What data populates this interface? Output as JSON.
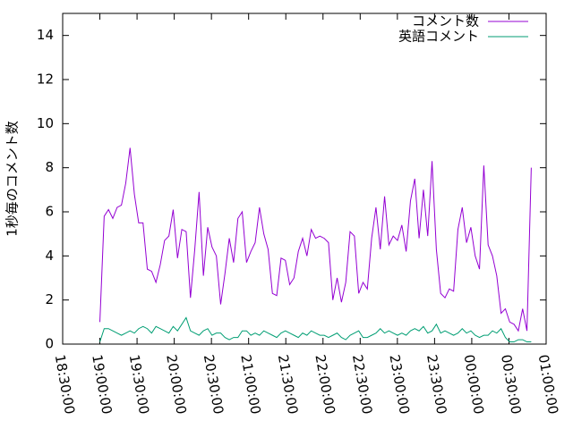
{
  "chart_data": {
    "type": "line",
    "y_label": "1秒毎のコメント数",
    "x": [
      19,
      19.058,
      19.116,
      19.174,
      19.232,
      19.29,
      19.348,
      19.406,
      19.464,
      19.522,
      19.58,
      19.638,
      19.696,
      19.754,
      19.812,
      19.87,
      19.928,
      19.986,
      20.044,
      20.102,
      20.16,
      20.218,
      20.276,
      20.334,
      20.392,
      20.45,
      20.508,
      20.566,
      20.624,
      20.682,
      20.74,
      20.798,
      20.856,
      20.914,
      20.972,
      21.03,
      21.088,
      21.146,
      21.204,
      21.262,
      21.32,
      21.378,
      21.436,
      21.494,
      21.552,
      21.61,
      21.668,
      21.726,
      21.784,
      21.842,
      21.9,
      21.958,
      22.016,
      22.074,
      22.132,
      22.19,
      22.248,
      22.306,
      22.364,
      22.422,
      22.48,
      22.538,
      22.596,
      22.654,
      22.712,
      22.77,
      22.828,
      22.886,
      22.944,
      23.002,
      23.06,
      23.118,
      23.176,
      23.234,
      23.292,
      23.35,
      23.408,
      23.466,
      23.524,
      23.582,
      23.64,
      23.698,
      23.756,
      23.814,
      23.872,
      23.93,
      23.988,
      24.046,
      24.104,
      24.162,
      24.22,
      24.278,
      24.336,
      24.394,
      24.452,
      24.51,
      24.568,
      24.626,
      24.684,
      24.742,
      24.8
    ],
    "series": [
      {
        "name": "コメント数",
        "color": "#9400d3",
        "values": [
          1.0,
          5.8,
          6.1,
          5.7,
          6.2,
          6.3,
          7.3,
          8.9,
          6.8,
          5.5,
          5.5,
          3.4,
          3.3,
          2.8,
          3.6,
          4.7,
          4.9,
          6.1,
          3.9,
          5.2,
          5.1,
          2.1,
          4.3,
          6.9,
          3.1,
          5.3,
          4.4,
          4.0,
          1.8,
          3.2,
          4.8,
          3.7,
          5.7,
          6.0,
          3.7,
          4.2,
          4.6,
          6.2,
          5.0,
          4.3,
          2.3,
          2.2,
          3.9,
          3.8,
          2.7,
          3.0,
          4.2,
          4.8,
          4.0,
          5.2,
          4.8,
          4.9,
          4.8,
          4.6,
          2.0,
          3.0,
          1.9,
          2.8,
          5.1,
          4.9,
          2.3,
          2.8,
          2.5,
          4.8,
          6.2,
          4.3,
          6.7,
          4.5,
          4.9,
          4.7,
          5.4,
          4.2,
          6.5,
          7.5,
          4.8,
          7.0,
          4.9,
          8.3,
          4.3,
          2.3,
          2.1,
          2.5,
          2.4,
          5.2,
          6.2,
          4.6,
          5.3,
          4.0,
          3.4,
          8.1,
          4.5,
          4.0,
          3.1,
          1.4,
          1.6,
          1.0,
          0.9,
          0.6,
          1.6,
          0.6,
          8.0
        ]
      },
      {
        "name": "英語コメント",
        "color": "#009e73",
        "values": [
          0.1,
          0.7,
          0.7,
          0.6,
          0.5,
          0.4,
          0.5,
          0.6,
          0.5,
          0.7,
          0.8,
          0.7,
          0.5,
          0.8,
          0.7,
          0.6,
          0.5,
          0.8,
          0.6,
          0.9,
          1.2,
          0.6,
          0.5,
          0.4,
          0.6,
          0.7,
          0.4,
          0.5,
          0.5,
          0.3,
          0.2,
          0.3,
          0.3,
          0.6,
          0.6,
          0.4,
          0.5,
          0.4,
          0.6,
          0.5,
          0.4,
          0.3,
          0.5,
          0.6,
          0.5,
          0.4,
          0.3,
          0.5,
          0.4,
          0.6,
          0.5,
          0.4,
          0.4,
          0.3,
          0.4,
          0.5,
          0.3,
          0.2,
          0.4,
          0.5,
          0.6,
          0.3,
          0.3,
          0.4,
          0.5,
          0.7,
          0.5,
          0.6,
          0.5,
          0.4,
          0.5,
          0.4,
          0.6,
          0.7,
          0.6,
          0.8,
          0.5,
          0.6,
          0.9,
          0.5,
          0.6,
          0.5,
          0.4,
          0.5,
          0.7,
          0.5,
          0.6,
          0.4,
          0.3,
          0.4,
          0.4,
          0.6,
          0.5,
          0.7,
          0.3,
          0.1,
          0.1,
          0.2,
          0.2,
          0.1,
          0.1
        ]
      }
    ],
    "xlim": [
      18.5,
      25
    ],
    "xticks": [
      {
        "value": 18.5,
        "label": "18:30:00"
      },
      {
        "value": 19,
        "label": "19:00:00"
      },
      {
        "value": 19.5,
        "label": "19:30:00"
      },
      {
        "value": 20,
        "label": "20:00:00"
      },
      {
        "value": 20.5,
        "label": "20:30:00"
      },
      {
        "value": 21,
        "label": "21:00:00"
      },
      {
        "value": 21.5,
        "label": "21:30:00"
      },
      {
        "value": 22,
        "label": "22:00:00"
      },
      {
        "value": 22.5,
        "label": "22:30:00"
      },
      {
        "value": 23,
        "label": "23:00:00"
      },
      {
        "value": 23.5,
        "label": "23:30:00"
      },
      {
        "value": 24,
        "label": "00:00:00"
      },
      {
        "value": 24.5,
        "label": "00:30:00"
      },
      {
        "value": 25,
        "label": "01:00:00"
      }
    ],
    "ylim": [
      0,
      15
    ],
    "yticks": [
      0,
      2,
      4,
      6,
      8,
      10,
      12,
      14
    ],
    "legend": "top-right"
  }
}
